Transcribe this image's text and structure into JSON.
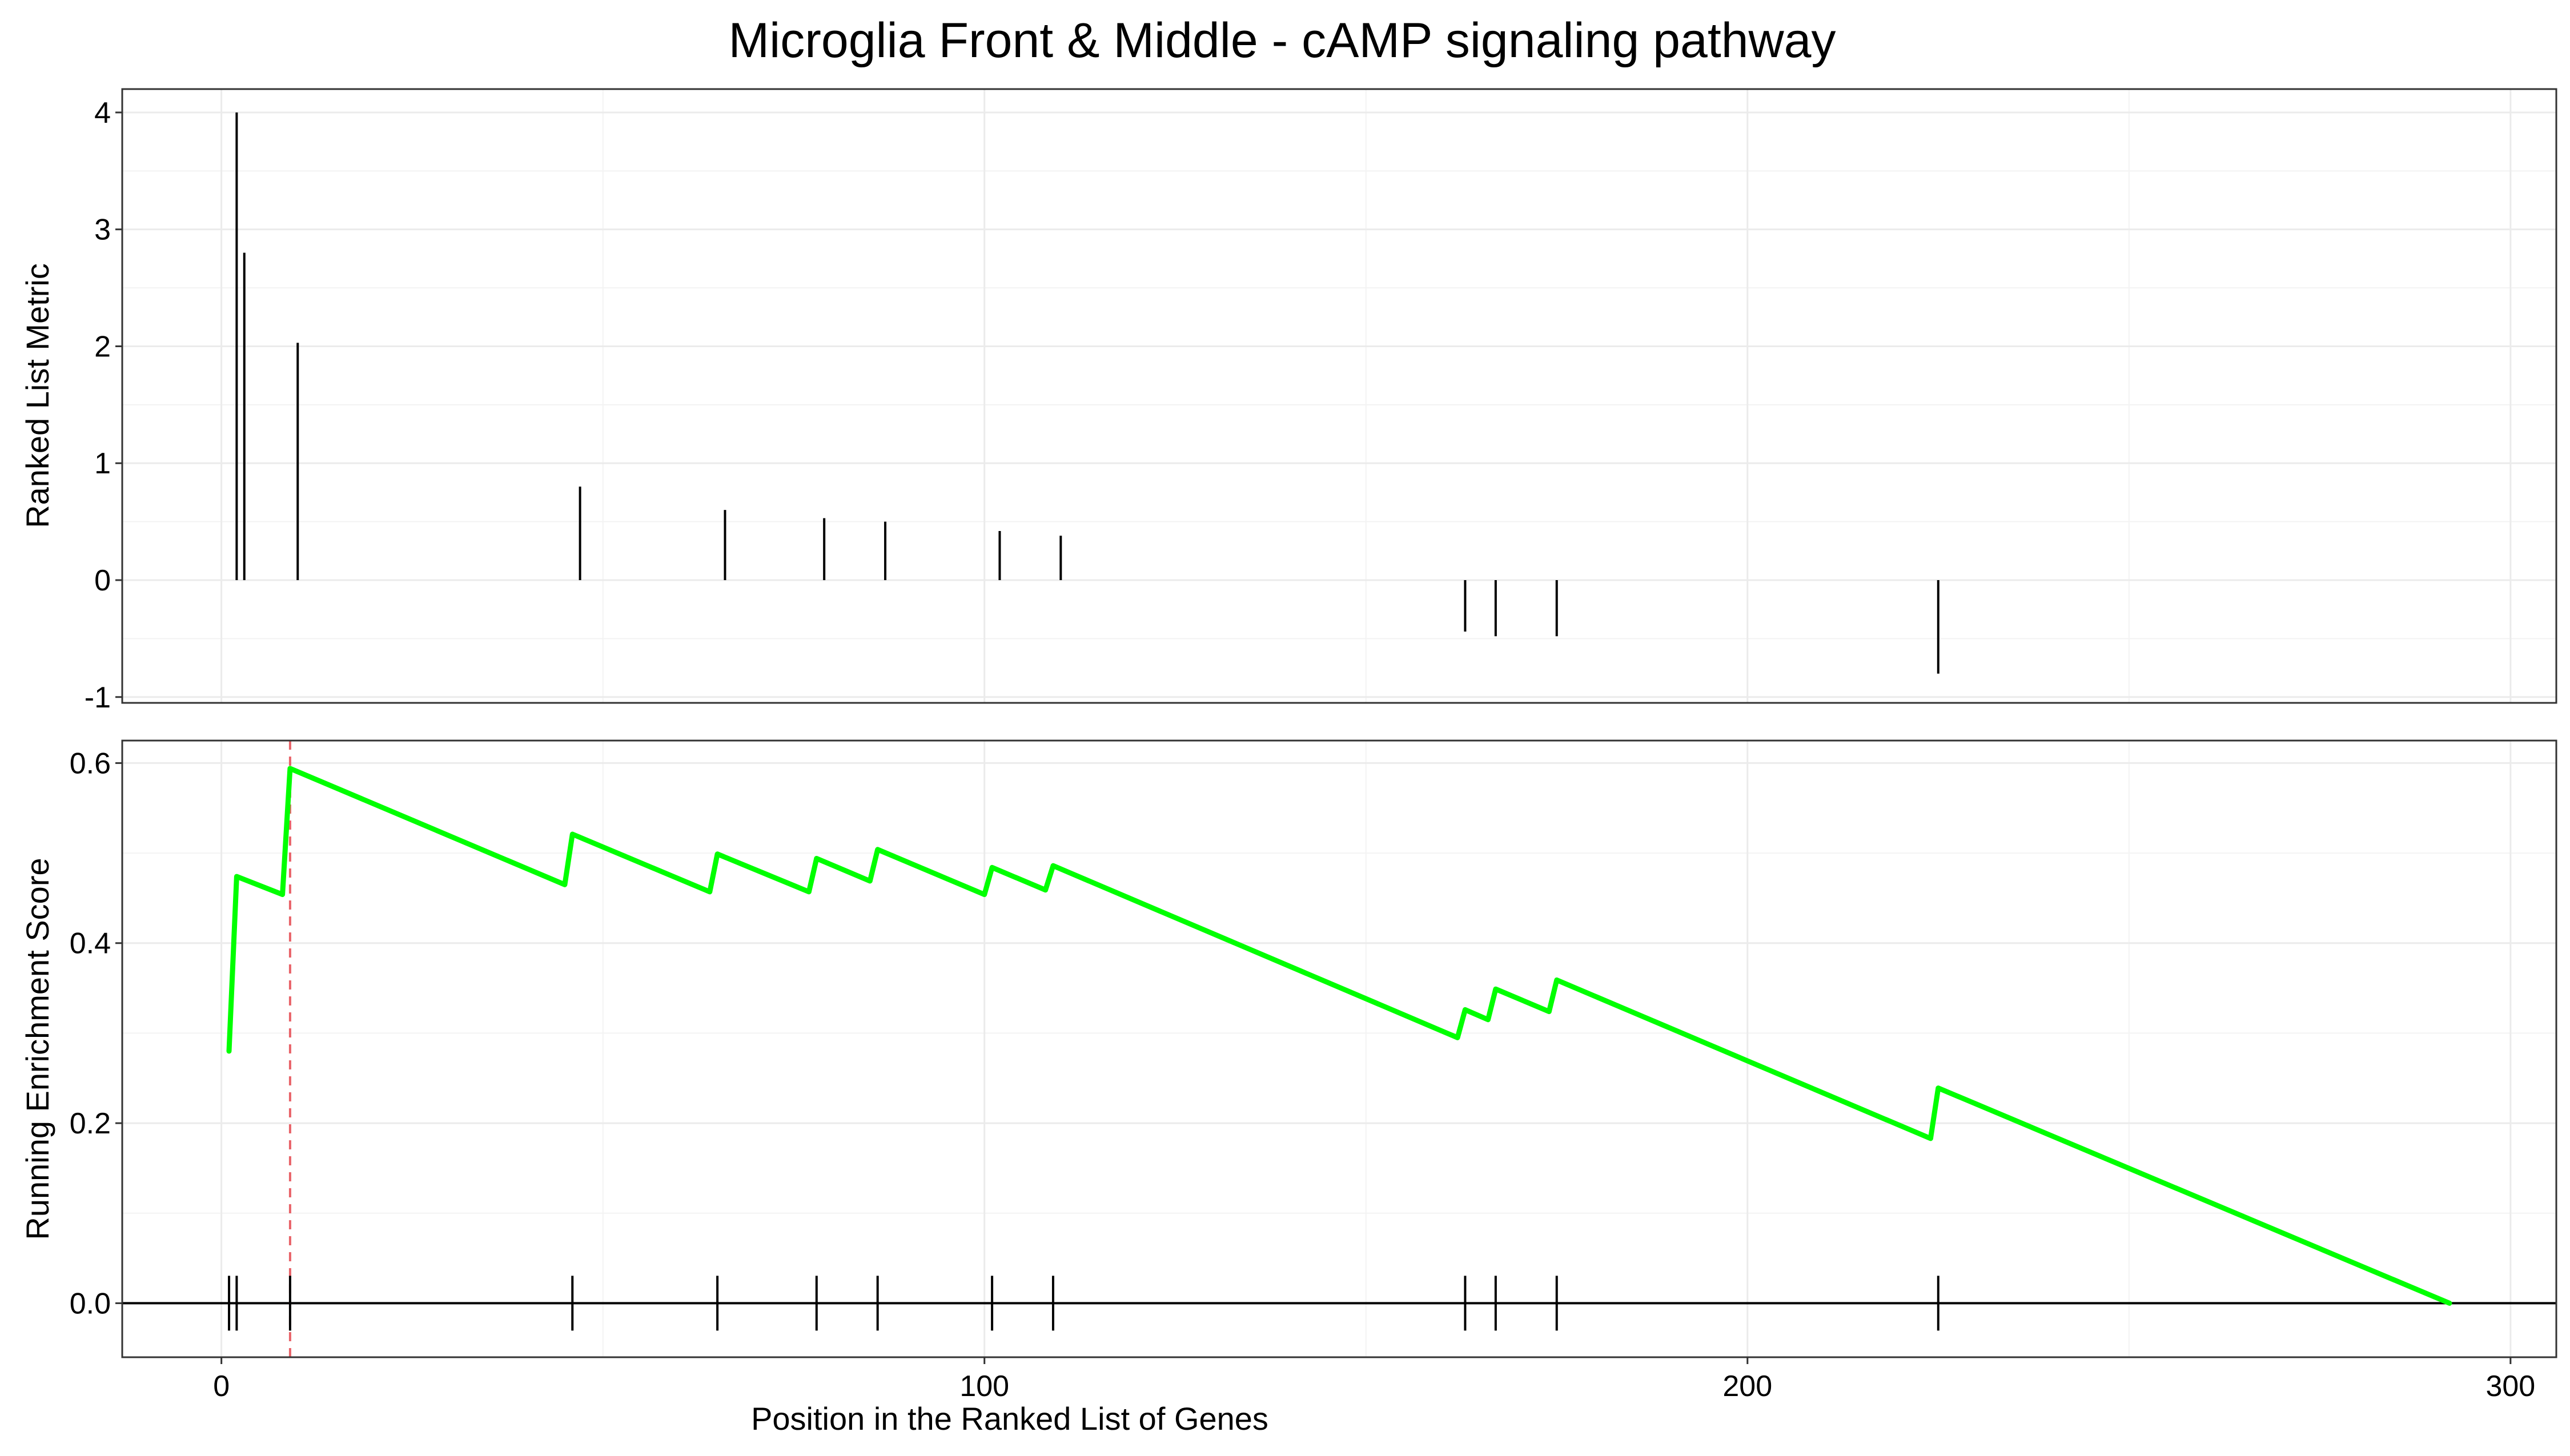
{
  "chart_data": {
    "type": "gsea",
    "title": "Microglia Front & Middle - cAMP signaling pathway",
    "xlabel": "Position in the Ranked List of Genes",
    "xlim": [
      -13,
      306
    ],
    "x_ticks": [
      0,
      100,
      200,
      300
    ],
    "x_tick_labels": [
      "0",
      "100",
      "200",
      "300"
    ],
    "panels": [
      {
        "id": "ranked-metric",
        "ylabel": "Ranked List Metric",
        "ylim": [
          -1.05,
          4.2
        ],
        "y_ticks": [
          -1,
          0,
          1,
          2,
          3,
          4
        ],
        "y_tick_labels": [
          "-1",
          "0",
          "1",
          "2",
          "3",
          "4"
        ],
        "bars": [
          {
            "x": 2,
            "y": 4.0
          },
          {
            "x": 3,
            "y": 2.8
          },
          {
            "x": 10,
            "y": 2.03
          },
          {
            "x": 47,
            "y": 0.8
          },
          {
            "x": 66,
            "y": 0.6
          },
          {
            "x": 79,
            "y": 0.53
          },
          {
            "x": 87,
            "y": 0.5
          },
          {
            "x": 102,
            "y": 0.42
          },
          {
            "x": 110,
            "y": 0.38
          },
          {
            "x": 163,
            "y": -0.44
          },
          {
            "x": 167,
            "y": -0.48
          },
          {
            "x": 175,
            "y": -0.48
          },
          {
            "x": 225,
            "y": -0.8
          }
        ]
      },
      {
        "id": "running-es",
        "ylabel": "Running Enrichment Score",
        "ylim": [
          -0.06,
          0.625
        ],
        "y_ticks": [
          0.0,
          0.2,
          0.4,
          0.6
        ],
        "y_tick_labels": [
          "0.0",
          "0.2",
          "0.4",
          "0.6"
        ],
        "line_color": "#00ff00",
        "peak_line_color": "#e8646a",
        "peak_x": 9,
        "es_curve": {
          "x": [
            1,
            2,
            8,
            9,
            45,
            46,
            64,
            65,
            77,
            78,
            85,
            86,
            100,
            101,
            108,
            109,
            162,
            163,
            166,
            167,
            174,
            175,
            224,
            225,
            292
          ],
          "y": [
            0.28,
            0.474,
            0.454,
            0.594,
            0.465,
            0.521,
            0.457,
            0.499,
            0.457,
            0.494,
            0.469,
            0.504,
            0.454,
            0.484,
            0.459,
            0.486,
            0.295,
            0.326,
            0.315,
            0.349,
            0.324,
            0.359,
            0.183,
            0.239,
            0.0
          ]
        },
        "hit_positions": [
          1,
          2,
          9,
          46,
          65,
          78,
          86,
          101,
          109,
          163,
          167,
          175,
          225
        ]
      }
    ]
  }
}
